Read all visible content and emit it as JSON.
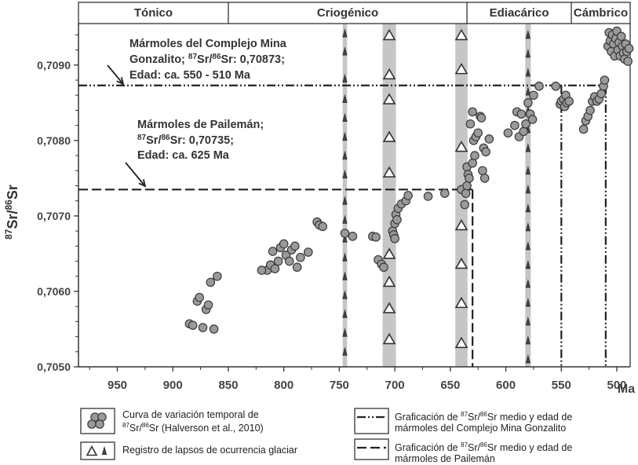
{
  "chart_data": {
    "type": "scatter",
    "xlabel": "Ma",
    "ylabel": "87Sr/86Sr",
    "xlim": [
      985,
      488
    ],
    "ylim": [
      0.705,
      0.70955
    ],
    "x_ticks": [
      "950",
      "900",
      "850",
      "800",
      "750",
      "700",
      "650",
      "600",
      "550",
      "500"
    ],
    "y_ticks": [
      "0,7050",
      "0,7060",
      "0,7070",
      "0,7080",
      "0,7090"
    ],
    "periods": [
      {
        "label": "Tónico",
        "from": 985,
        "to": 850
      },
      {
        "label": "Criogénico",
        "from": 850,
        "to": 635
      },
      {
        "label": "Ediacárico",
        "from": 635,
        "to": 541
      },
      {
        "label": "Cámbrico",
        "from": 541,
        "to": 488
      }
    ],
    "glacial_bands": [
      {
        "x": 745,
        "width": 4
      },
      {
        "x": 705,
        "width": 12
      },
      {
        "x": 640,
        "width": 11
      },
      {
        "x": 580,
        "width": 5
      }
    ],
    "triangles_large": [
      {
        "x": 705,
        "y": [
          0.7094,
          0.70888,
          0.70855,
          0.70805,
          0.70758,
          0.7065,
          0.70613,
          0.70578,
          0.70537
        ]
      },
      {
        "x": 640,
        "y": [
          0.7094,
          0.70895,
          0.70792,
          0.70688,
          0.70637,
          0.70585,
          0.70532
        ]
      }
    ],
    "triangles_small": [
      {
        "x": 745,
        "y": [
          0.70942,
          0.70918,
          0.70882,
          0.70855,
          0.7083,
          0.70805,
          0.7078,
          0.70755,
          0.7072,
          0.70695,
          0.7067,
          0.70645,
          0.7062,
          0.70595,
          0.7057,
          0.70545,
          0.7052
        ]
      },
      {
        "x": 580,
        "y": [
          0.7094,
          0.70915,
          0.7089,
          0.70865,
          0.7084,
          0.70815,
          0.7079,
          0.7076,
          0.70735,
          0.7071,
          0.70685,
          0.7066,
          0.70635,
          0.7061,
          0.70585,
          0.7056,
          0.70535,
          0.7051
        ]
      }
    ],
    "series": [
      {
        "name": "Curva de variación temporal de 87Sr/86Sr (Halverson et al., 2010)",
        "points": [
          [
            885,
            0.70557
          ],
          [
            882,
            0.70555
          ],
          [
            878,
            0.70587
          ],
          [
            876,
            0.70592
          ],
          [
            873,
            0.70552
          ],
          [
            870,
            0.70576
          ],
          [
            868,
            0.70582
          ],
          [
            866,
            0.70612
          ],
          [
            863,
            0.7055
          ],
          [
            860,
            0.7062
          ],
          [
            815,
            0.70628
          ],
          [
            812,
            0.70635
          ],
          [
            810,
            0.70653
          ],
          [
            808,
            0.7063
          ],
          [
            805,
            0.7064
          ],
          [
            803,
            0.70658
          ],
          [
            800,
            0.70663
          ],
          [
            798,
            0.70648
          ],
          [
            795,
            0.7064
          ],
          [
            793,
            0.70655
          ],
          [
            790,
            0.7066
          ],
          [
            788,
            0.70632
          ],
          [
            785,
            0.70645
          ],
          [
            778,
            0.70652
          ],
          [
            820,
            0.70628
          ],
          [
            770,
            0.70692
          ],
          [
            768,
            0.70688
          ],
          [
            765,
            0.70686
          ],
          [
            745,
            0.70677
          ],
          [
            738,
            0.70673
          ],
          [
            720,
            0.70673
          ],
          [
            717,
            0.70672
          ],
          [
            715,
            0.70642
          ],
          [
            712,
            0.70636
          ],
          [
            710,
            0.70632
          ],
          [
            702,
            0.7068
          ],
          [
            701,
            0.70675
          ],
          [
            700,
            0.7067
          ],
          [
            700,
            0.7069
          ],
          [
            699,
            0.70702
          ],
          [
            698,
            0.70695
          ],
          [
            697,
            0.7071
          ],
          [
            694,
            0.70716
          ],
          [
            690,
            0.7072
          ],
          [
            688,
            0.70727
          ],
          [
            670,
            0.70726
          ],
          [
            655,
            0.7073
          ],
          [
            640,
            0.70735
          ],
          [
            637,
            0.70715
          ],
          [
            636,
            0.7073
          ],
          [
            635,
            0.7074
          ],
          [
            635,
            0.70765
          ],
          [
            634,
            0.70755
          ],
          [
            633,
            0.7075
          ],
          [
            632,
            0.70822
          ],
          [
            630,
            0.70838
          ],
          [
            630,
            0.7077
          ],
          [
            629,
            0.708
          ],
          [
            628,
            0.7078
          ],
          [
            627,
            0.70805
          ],
          [
            625,
            0.7081
          ],
          [
            623,
            0.70832
          ],
          [
            622,
            0.7083
          ],
          [
            621,
            0.7076
          ],
          [
            620,
            0.7079
          ],
          [
            619,
            0.7075
          ],
          [
            618,
            0.70785
          ],
          [
            615,
            0.70802
          ],
          [
            598,
            0.7081
          ],
          [
            592,
            0.7082
          ],
          [
            590,
            0.70838
          ],
          [
            588,
            0.70805
          ],
          [
            586,
            0.70835
          ],
          [
            584,
            0.70812
          ],
          [
            582,
            0.70822
          ],
          [
            580,
            0.7085
          ],
          [
            578,
            0.70835
          ],
          [
            576,
            0.70828
          ],
          [
            575,
            0.7086
          ],
          [
            570,
            0.70872
          ],
          [
            555,
            0.70872
          ],
          [
            551,
            0.70848
          ],
          [
            550,
            0.70852
          ],
          [
            548,
            0.70855
          ],
          [
            547,
            0.70845
          ],
          [
            546,
            0.7086
          ],
          [
            545,
            0.7085
          ],
          [
            543,
            0.70852
          ],
          [
            530,
            0.70815
          ],
          [
            528,
            0.70826
          ],
          [
            526,
            0.70832
          ],
          [
            524,
            0.7084
          ],
          [
            522,
            0.70852
          ],
          [
            520,
            0.70858
          ],
          [
            518,
            0.70852
          ],
          [
            516,
            0.70855
          ],
          [
            514,
            0.70862
          ],
          [
            512,
            0.70872
          ],
          [
            511,
            0.7088
          ],
          [
            508,
            0.70925
          ],
          [
            507,
            0.70943
          ],
          [
            506,
            0.70932
          ],
          [
            505,
            0.70918
          ],
          [
            504,
            0.7094
          ],
          [
            503,
            0.70928
          ],
          [
            502,
            0.70912
          ],
          [
            501,
            0.70935
          ],
          [
            500,
            0.70945
          ],
          [
            499,
            0.7092
          ],
          [
            498,
            0.7093
          ],
          [
            497,
            0.70912
          ],
          [
            496,
            0.70938
          ],
          [
            495,
            0.70925
          ],
          [
            494,
            0.70916
          ],
          [
            493,
            0.70908
          ],
          [
            492,
            0.70928
          ],
          [
            491,
            0.70918
          ],
          [
            490,
            0.70905
          ],
          [
            489,
            0.70922
          ]
        ]
      }
    ],
    "reference_lines": [
      {
        "name": "Mina Gonzalito",
        "value": 0.70873,
        "x_from": 985,
        "x_to": 510,
        "age_lines": [
          550,
          510
        ],
        "style": "dash-dot-dot"
      },
      {
        "name": "Pailemán",
        "value": 0.70735,
        "x_from": 985,
        "x_to": 630,
        "age_lines": [
          630
        ],
        "style": "dashed"
      }
    ],
    "annotations": [
      {
        "lines": [
          "Mármoles del Complejo Mina",
          "Gonzalito; 87Sr/86Sr: 0,70873;",
          "Edad: ca. 550 - 510 Ma"
        ]
      },
      {
        "lines": [
          "Mármoles de Pailemán;",
          "87Sr/86Sr: 0,70735;",
          "Edad: ca. 625 Ma"
        ]
      }
    ]
  },
  "legend": {
    "curve": "Curva de variación temporal de 87Sr/86Sr (Halverson et al., 2010)",
    "glacial": "Registro de lapsos de ocurrencia glaciar",
    "gonzalito": "Graficación de 87Sr/86Sr medio y edad de mármoles del Complejo Mina Gonzalito",
    "paileman": "Graficación de 87Sr/86Sr medio y edad de mármoles de Pailemán"
  }
}
